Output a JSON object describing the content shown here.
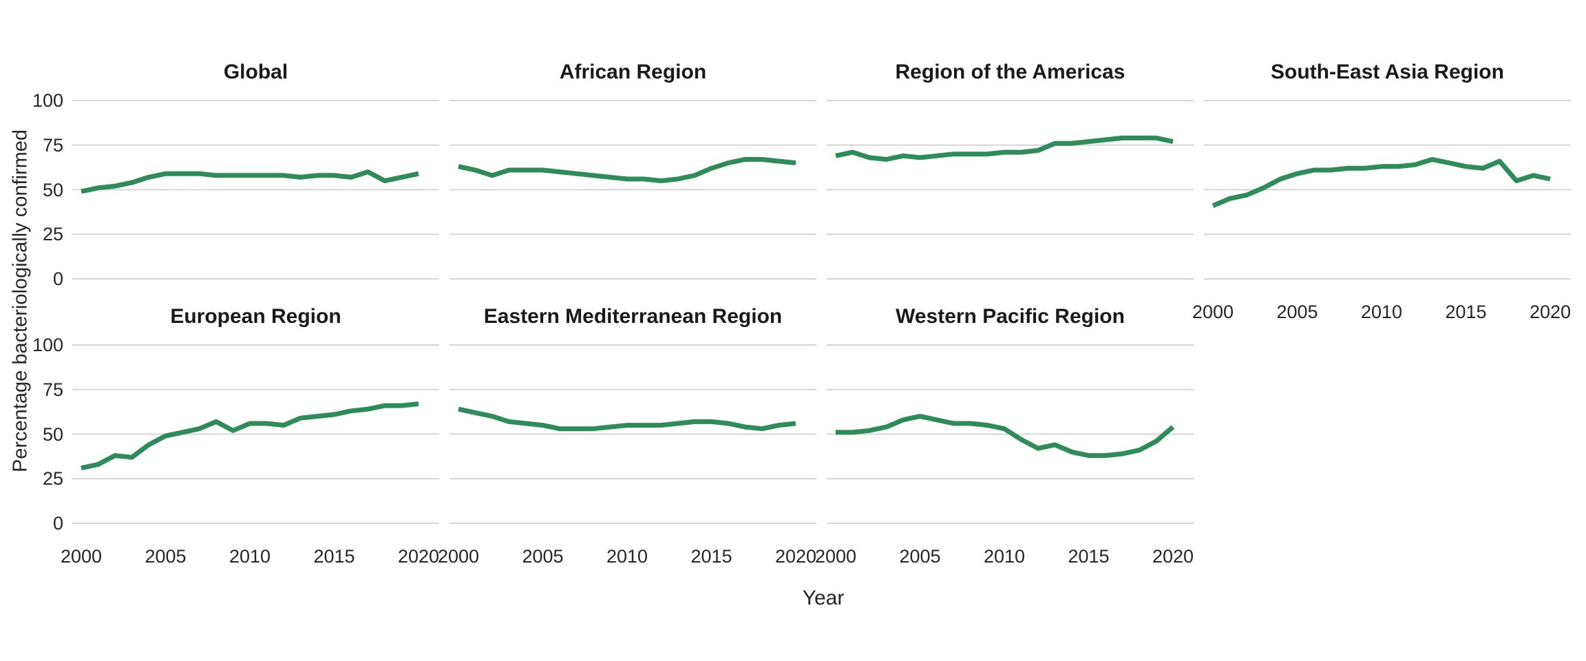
{
  "y_axis": {
    "title": "Percentage bacteriologically confirmed",
    "ticks": [
      100,
      75,
      50,
      25,
      0
    ]
  },
  "x_axis": {
    "title": "Year",
    "ticks": [
      2000,
      2005,
      2010,
      2015,
      2020
    ]
  },
  "chart_data": {
    "type": "line",
    "title": "",
    "facet_layout": {
      "ncol": 4,
      "nrow": 2,
      "legend": "none",
      "grid": "horizontal-only",
      "panel_background": "white"
    },
    "line_color": "#2e8c5a",
    "grid_color": "#d6d6d6",
    "ylim": [
      0,
      100
    ],
    "xlabel": "Year",
    "ylabel": "Percentage bacteriologically confirmed",
    "x": [
      2000,
      2001,
      2002,
      2003,
      2004,
      2005,
      2006,
      2007,
      2008,
      2009,
      2010,
      2011,
      2012,
      2013,
      2014,
      2015,
      2016,
      2017,
      2018,
      2019,
      2020
    ],
    "series": [
      {
        "name": "Global",
        "values": [
          49,
          51,
          52,
          54,
          57,
          59,
          59,
          59,
          58,
          58,
          58,
          58,
          58,
          57,
          58,
          58,
          57,
          60,
          55,
          57,
          59
        ]
      },
      {
        "name": "African Region",
        "values": [
          63,
          61,
          58,
          61,
          61,
          61,
          60,
          59,
          58,
          57,
          56,
          56,
          55,
          56,
          58,
          62,
          65,
          67,
          67,
          66,
          65
        ]
      },
      {
        "name": "Region of the Americas",
        "values": [
          69,
          71,
          68,
          67,
          69,
          68,
          69,
          70,
          70,
          70,
          71,
          71,
          72,
          76,
          76,
          77,
          78,
          79,
          79,
          79,
          77
        ]
      },
      {
        "name": "South-East Asia Region",
        "values": [
          41,
          45,
          47,
          51,
          56,
          59,
          61,
          61,
          62,
          62,
          63,
          63,
          64,
          67,
          65,
          63,
          62,
          66,
          55,
          58,
          56
        ]
      },
      {
        "name": "European Region",
        "values": [
          31,
          33,
          38,
          37,
          44,
          49,
          51,
          53,
          57,
          52,
          56,
          56,
          55,
          59,
          60,
          61,
          63,
          64,
          66,
          66,
          67
        ]
      },
      {
        "name": "Eastern Mediterranean Region",
        "values": [
          64,
          62,
          60,
          57,
          56,
          55,
          53,
          53,
          53,
          54,
          55,
          55,
          55,
          56,
          57,
          57,
          56,
          54,
          53,
          55,
          56
        ]
      },
      {
        "name": "Western Pacific Region",
        "values": [
          51,
          51,
          52,
          54,
          58,
          60,
          58,
          56,
          56,
          55,
          53,
          47,
          42,
          44,
          40,
          38,
          38,
          39,
          41,
          46,
          54
        ]
      }
    ]
  }
}
